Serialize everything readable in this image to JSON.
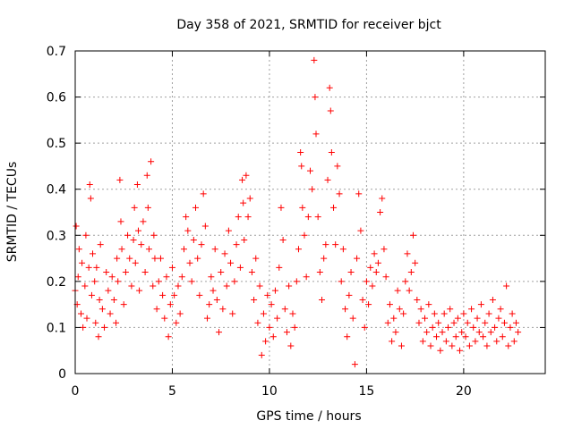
{
  "chart_data": {
    "type": "scatter",
    "title": "Day 358 of 2021, SRMTID for receiver bjct",
    "xlabel": "GPS time / hours",
    "ylabel": "SRMTID / TECUs",
    "xlim": [
      0,
      24.2
    ],
    "ylim": [
      0,
      0.7
    ],
    "xticks": [
      0,
      5,
      10,
      15,
      20
    ],
    "xtick_labels": [
      "0",
      "5",
      "10",
      "15",
      "20"
    ],
    "yticks": [
      0,
      0.1,
      0.2,
      0.3,
      0.4,
      0.5,
      0.6,
      0.7
    ],
    "ytick_labels": [
      "0",
      "0.1",
      "0.2",
      "0.3",
      "0.4",
      "0.5",
      "0.6",
      "0.7"
    ],
    "grid": true,
    "marker": "+",
    "series": [
      {
        "name": "SRMTID",
        "color": "#ff0000",
        "points": [
          [
            0.0,
            0.18
          ],
          [
            0.05,
            0.32
          ],
          [
            0.1,
            0.15
          ],
          [
            0.15,
            0.21
          ],
          [
            0.2,
            0.27
          ],
          [
            0.3,
            0.13
          ],
          [
            0.35,
            0.24
          ],
          [
            0.4,
            0.1
          ],
          [
            0.5,
            0.19
          ],
          [
            0.55,
            0.3
          ],
          [
            0.6,
            0.12
          ],
          [
            0.7,
            0.23
          ],
          [
            0.75,
            0.41
          ],
          [
            0.8,
            0.38
          ],
          [
            0.85,
            0.17
          ],
          [
            0.9,
            0.26
          ],
          [
            1.0,
            0.2
          ],
          [
            1.05,
            0.11
          ],
          [
            1.1,
            0.23
          ],
          [
            1.2,
            0.08
          ],
          [
            1.25,
            0.16
          ],
          [
            1.3,
            0.28
          ],
          [
            1.4,
            0.14
          ],
          [
            1.5,
            0.1
          ],
          [
            1.6,
            0.22
          ],
          [
            1.7,
            0.18
          ],
          [
            1.8,
            0.13
          ],
          [
            1.9,
            0.21
          ],
          [
            2.0,
            0.16
          ],
          [
            2.1,
            0.11
          ],
          [
            2.15,
            0.25
          ],
          [
            2.2,
            0.2
          ],
          [
            2.3,
            0.42
          ],
          [
            2.35,
            0.33
          ],
          [
            2.4,
            0.27
          ],
          [
            2.5,
            0.15
          ],
          [
            2.6,
            0.22
          ],
          [
            2.7,
            0.3
          ],
          [
            2.8,
            0.25
          ],
          [
            2.9,
            0.19
          ],
          [
            3.0,
            0.29
          ],
          [
            3.05,
            0.36
          ],
          [
            3.1,
            0.24
          ],
          [
            3.2,
            0.41
          ],
          [
            3.25,
            0.31
          ],
          [
            3.3,
            0.18
          ],
          [
            3.4,
            0.28
          ],
          [
            3.5,
            0.33
          ],
          [
            3.6,
            0.22
          ],
          [
            3.7,
            0.43
          ],
          [
            3.75,
            0.36
          ],
          [
            3.8,
            0.27
          ],
          [
            3.9,
            0.46
          ],
          [
            4.0,
            0.19
          ],
          [
            4.05,
            0.3
          ],
          [
            4.1,
            0.25
          ],
          [
            4.2,
            0.14
          ],
          [
            4.3,
            0.2
          ],
          [
            4.4,
            0.25
          ],
          [
            4.5,
            0.17
          ],
          [
            4.6,
            0.12
          ],
          [
            4.7,
            0.21
          ],
          [
            4.8,
            0.08
          ],
          [
            4.9,
            0.15
          ],
          [
            5.0,
            0.23
          ],
          [
            5.1,
            0.17
          ],
          [
            5.2,
            0.11
          ],
          [
            5.3,
            0.19
          ],
          [
            5.4,
            0.13
          ],
          [
            5.5,
            0.21
          ],
          [
            5.6,
            0.27
          ],
          [
            5.7,
            0.34
          ],
          [
            5.8,
            0.31
          ],
          [
            5.9,
            0.24
          ],
          [
            6.0,
            0.2
          ],
          [
            6.1,
            0.29
          ],
          [
            6.2,
            0.36
          ],
          [
            6.3,
            0.25
          ],
          [
            6.4,
            0.17
          ],
          [
            6.5,
            0.28
          ],
          [
            6.6,
            0.39
          ],
          [
            6.7,
            0.32
          ],
          [
            6.8,
            0.12
          ],
          [
            6.9,
            0.15
          ],
          [
            7.0,
            0.21
          ],
          [
            7.1,
            0.18
          ],
          [
            7.2,
            0.27
          ],
          [
            7.3,
            0.16
          ],
          [
            7.4,
            0.09
          ],
          [
            7.5,
            0.22
          ],
          [
            7.6,
            0.14
          ],
          [
            7.7,
            0.26
          ],
          [
            7.8,
            0.19
          ],
          [
            7.9,
            0.31
          ],
          [
            8.0,
            0.24
          ],
          [
            8.1,
            0.13
          ],
          [
            8.2,
            0.2
          ],
          [
            8.3,
            0.28
          ],
          [
            8.4,
            0.34
          ],
          [
            8.5,
            0.23
          ],
          [
            8.6,
            0.42
          ],
          [
            8.65,
            0.37
          ],
          [
            8.7,
            0.29
          ],
          [
            8.8,
            0.43
          ],
          [
            8.9,
            0.34
          ],
          [
            9.0,
            0.38
          ],
          [
            9.1,
            0.22
          ],
          [
            9.2,
            0.16
          ],
          [
            9.3,
            0.25
          ],
          [
            9.4,
            0.11
          ],
          [
            9.5,
            0.19
          ],
          [
            9.6,
            0.04
          ],
          [
            9.7,
            0.13
          ],
          [
            9.8,
            0.07
          ],
          [
            9.9,
            0.17
          ],
          [
            10.0,
            0.1
          ],
          [
            10.1,
            0.15
          ],
          [
            10.2,
            0.08
          ],
          [
            10.3,
            0.18
          ],
          [
            10.4,
            0.12
          ],
          [
            10.5,
            0.23
          ],
          [
            10.6,
            0.36
          ],
          [
            10.7,
            0.29
          ],
          [
            10.8,
            0.14
          ],
          [
            10.9,
            0.09
          ],
          [
            11.0,
            0.19
          ],
          [
            11.1,
            0.06
          ],
          [
            11.2,
            0.13
          ],
          [
            11.3,
            0.1
          ],
          [
            11.4,
            0.2
          ],
          [
            11.5,
            0.27
          ],
          [
            11.6,
            0.48
          ],
          [
            11.65,
            0.45
          ],
          [
            11.7,
            0.36
          ],
          [
            11.8,
            0.3
          ],
          [
            11.9,
            0.21
          ],
          [
            12.0,
            0.34
          ],
          [
            12.1,
            0.44
          ],
          [
            12.2,
            0.4
          ],
          [
            12.3,
            0.68
          ],
          [
            12.35,
            0.6
          ],
          [
            12.4,
            0.52
          ],
          [
            12.5,
            0.34
          ],
          [
            12.6,
            0.22
          ],
          [
            12.7,
            0.16
          ],
          [
            12.8,
            0.25
          ],
          [
            12.9,
            0.28
          ],
          [
            13.0,
            0.42
          ],
          [
            13.1,
            0.62
          ],
          [
            13.15,
            0.57
          ],
          [
            13.2,
            0.48
          ],
          [
            13.3,
            0.36
          ],
          [
            13.4,
            0.28
          ],
          [
            13.5,
            0.45
          ],
          [
            13.6,
            0.39
          ],
          [
            13.7,
            0.2
          ],
          [
            13.8,
            0.27
          ],
          [
            13.9,
            0.14
          ],
          [
            14.0,
            0.08
          ],
          [
            14.1,
            0.17
          ],
          [
            14.2,
            0.22
          ],
          [
            14.3,
            0.12
          ],
          [
            14.4,
            0.02
          ],
          [
            14.5,
            0.25
          ],
          [
            14.6,
            0.39
          ],
          [
            14.7,
            0.31
          ],
          [
            14.8,
            0.16
          ],
          [
            14.9,
            0.1
          ],
          [
            15.0,
            0.2
          ],
          [
            15.1,
            0.15
          ],
          [
            15.2,
            0.23
          ],
          [
            15.3,
            0.19
          ],
          [
            15.4,
            0.26
          ],
          [
            15.5,
            0.22
          ],
          [
            15.6,
            0.24
          ],
          [
            15.7,
            0.35
          ],
          [
            15.8,
            0.38
          ],
          [
            15.9,
            0.27
          ],
          [
            16.0,
            0.21
          ],
          [
            16.1,
            0.11
          ],
          [
            16.2,
            0.15
          ],
          [
            16.3,
            0.07
          ],
          [
            16.4,
            0.12
          ],
          [
            16.5,
            0.09
          ],
          [
            16.6,
            0.18
          ],
          [
            16.7,
            0.14
          ],
          [
            16.8,
            0.06
          ],
          [
            16.9,
            0.13
          ],
          [
            17.0,
            0.2
          ],
          [
            17.1,
            0.26
          ],
          [
            17.2,
            0.18
          ],
          [
            17.3,
            0.22
          ],
          [
            17.4,
            0.3
          ],
          [
            17.5,
            0.24
          ],
          [
            17.6,
            0.16
          ],
          [
            17.7,
            0.11
          ],
          [
            17.8,
            0.14
          ],
          [
            17.9,
            0.07
          ],
          [
            18.0,
            0.12
          ],
          [
            18.1,
            0.09
          ],
          [
            18.2,
            0.15
          ],
          [
            18.3,
            0.06
          ],
          [
            18.4,
            0.1
          ],
          [
            18.5,
            0.13
          ],
          [
            18.6,
            0.08
          ],
          [
            18.7,
            0.11
          ],
          [
            18.8,
            0.05
          ],
          [
            18.9,
            0.09
          ],
          [
            19.0,
            0.13
          ],
          [
            19.1,
            0.07
          ],
          [
            19.2,
            0.1
          ],
          [
            19.3,
            0.14
          ],
          [
            19.4,
            0.06
          ],
          [
            19.5,
            0.11
          ],
          [
            19.6,
            0.08
          ],
          [
            19.7,
            0.12
          ],
          [
            19.8,
            0.05
          ],
          [
            19.9,
            0.09
          ],
          [
            20.0,
            0.13
          ],
          [
            20.1,
            0.08
          ],
          [
            20.2,
            0.11
          ],
          [
            20.3,
            0.06
          ],
          [
            20.4,
            0.14
          ],
          [
            20.5,
            0.1
          ],
          [
            20.6,
            0.07
          ],
          [
            20.7,
            0.12
          ],
          [
            20.8,
            0.09
          ],
          [
            20.9,
            0.15
          ],
          [
            21.0,
            0.08
          ],
          [
            21.1,
            0.11
          ],
          [
            21.2,
            0.06
          ],
          [
            21.3,
            0.13
          ],
          [
            21.4,
            0.09
          ],
          [
            21.5,
            0.16
          ],
          [
            21.6,
            0.1
          ],
          [
            21.7,
            0.07
          ],
          [
            21.8,
            0.12
          ],
          [
            21.9,
            0.14
          ],
          [
            22.0,
            0.08
          ],
          [
            22.1,
            0.11
          ],
          [
            22.2,
            0.19
          ],
          [
            22.3,
            0.06
          ],
          [
            22.4,
            0.1
          ],
          [
            22.5,
            0.13
          ],
          [
            22.6,
            0.07
          ],
          [
            22.7,
            0.11
          ],
          [
            22.8,
            0.09
          ]
        ]
      }
    ]
  }
}
